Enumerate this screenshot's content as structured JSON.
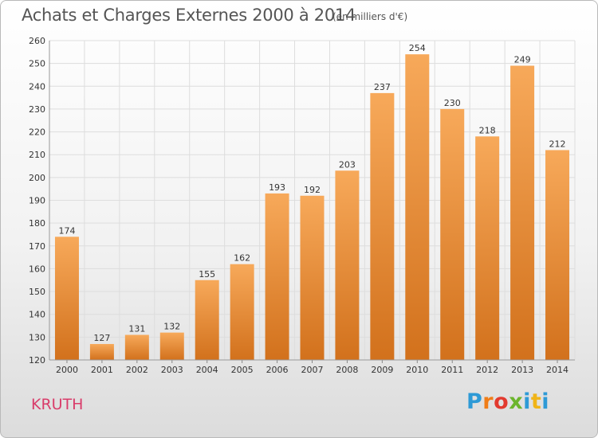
{
  "header": {
    "title": "Achats et Charges Externes 2000 à 2014",
    "subtitle": "(en milliers d'€)"
  },
  "footer": {
    "entity": "KRUTH",
    "logo_text": "Proxiti"
  },
  "colors": {
    "bar_top": "#f7a95a",
    "bar_bottom": "#d2711c",
    "grid": "#dddddd",
    "axis_text": "#333333",
    "entity": "#d93c6a"
  },
  "chart_data": {
    "type": "bar",
    "title": "Achats et Charges Externes 2000 à 2014",
    "subtitle": "(en milliers d'€)",
    "categories": [
      "2000",
      "2001",
      "2002",
      "2003",
      "2004",
      "2005",
      "2006",
      "2007",
      "2008",
      "2009",
      "2010",
      "2011",
      "2012",
      "2013",
      "2014"
    ],
    "values": [
      174,
      127,
      131,
      132,
      155,
      162,
      193,
      192,
      203,
      237,
      254,
      230,
      218,
      249,
      212
    ],
    "ylim": [
      120,
      260
    ],
    "yticks": [
      120,
      130,
      140,
      150,
      160,
      170,
      180,
      190,
      200,
      210,
      220,
      230,
      240,
      250,
      260
    ],
    "grid": true,
    "data_labels": true
  }
}
